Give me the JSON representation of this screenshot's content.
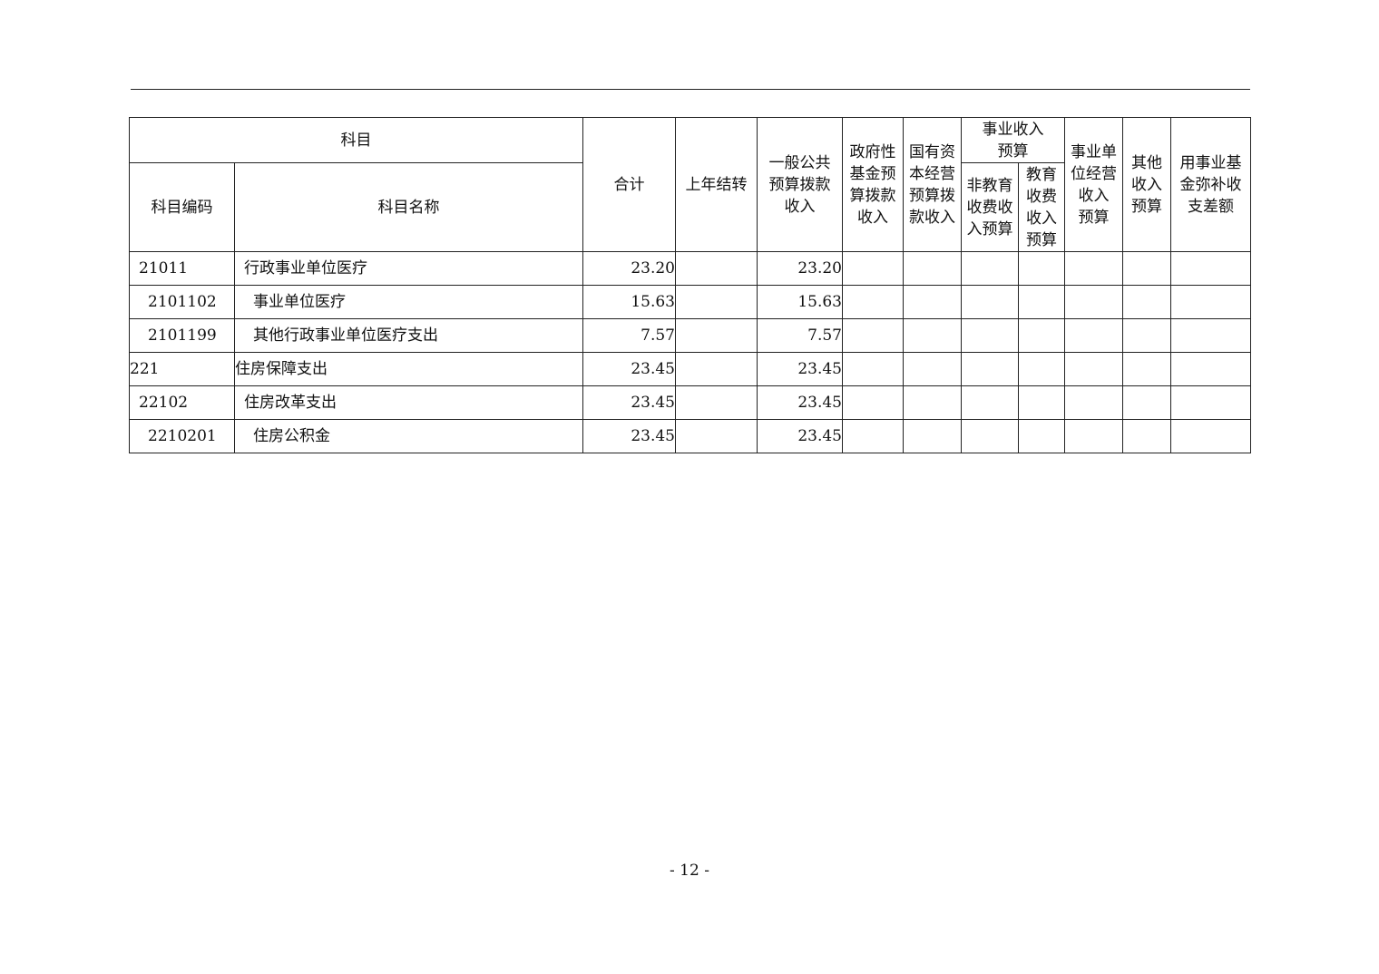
{
  "headers": {
    "subject": "科目",
    "code": "科目编码",
    "name": "科目名称",
    "total": "合计",
    "carryover": "上年结转",
    "general": "一般公共\n预算拨款\n收入",
    "gov_fund": "政府性\n基金预\n算拨款\n收入",
    "state_capital": "国有资\n本经营\n预算拨\n款收入",
    "business_income": "事业收入\n预算",
    "non_edu": "非教育\n收费收\n入预算",
    "edu": "教育\n收费\n收入\n预算",
    "unit_operation": "事业单\n位经营\n收入\n预算",
    "other": "其他\n收入\n预算",
    "fund_offset": "用事业基\n金弥补收\n支差额"
  },
  "rows": [
    {
      "code": "21011",
      "name": "行政事业单位医疗",
      "total": "23.20",
      "general": "23.20",
      "level": 1
    },
    {
      "code": "2101102",
      "name": "事业单位医疗",
      "total": "15.63",
      "general": "15.63",
      "level": 2
    },
    {
      "code": "2101199",
      "name": "其他行政事业单位医疗支出",
      "total": "7.57",
      "general": "7.57",
      "level": 2
    },
    {
      "code": "221",
      "name": "住房保障支出",
      "total": "23.45",
      "general": "23.45",
      "level": 0
    },
    {
      "code": "22102",
      "name": "住房改革支出",
      "total": "23.45",
      "general": "23.45",
      "level": 1
    },
    {
      "code": "2210201",
      "name": "住房公积金",
      "total": "23.45",
      "general": "23.45",
      "level": 2
    }
  ],
  "page_number": "- 12 -"
}
